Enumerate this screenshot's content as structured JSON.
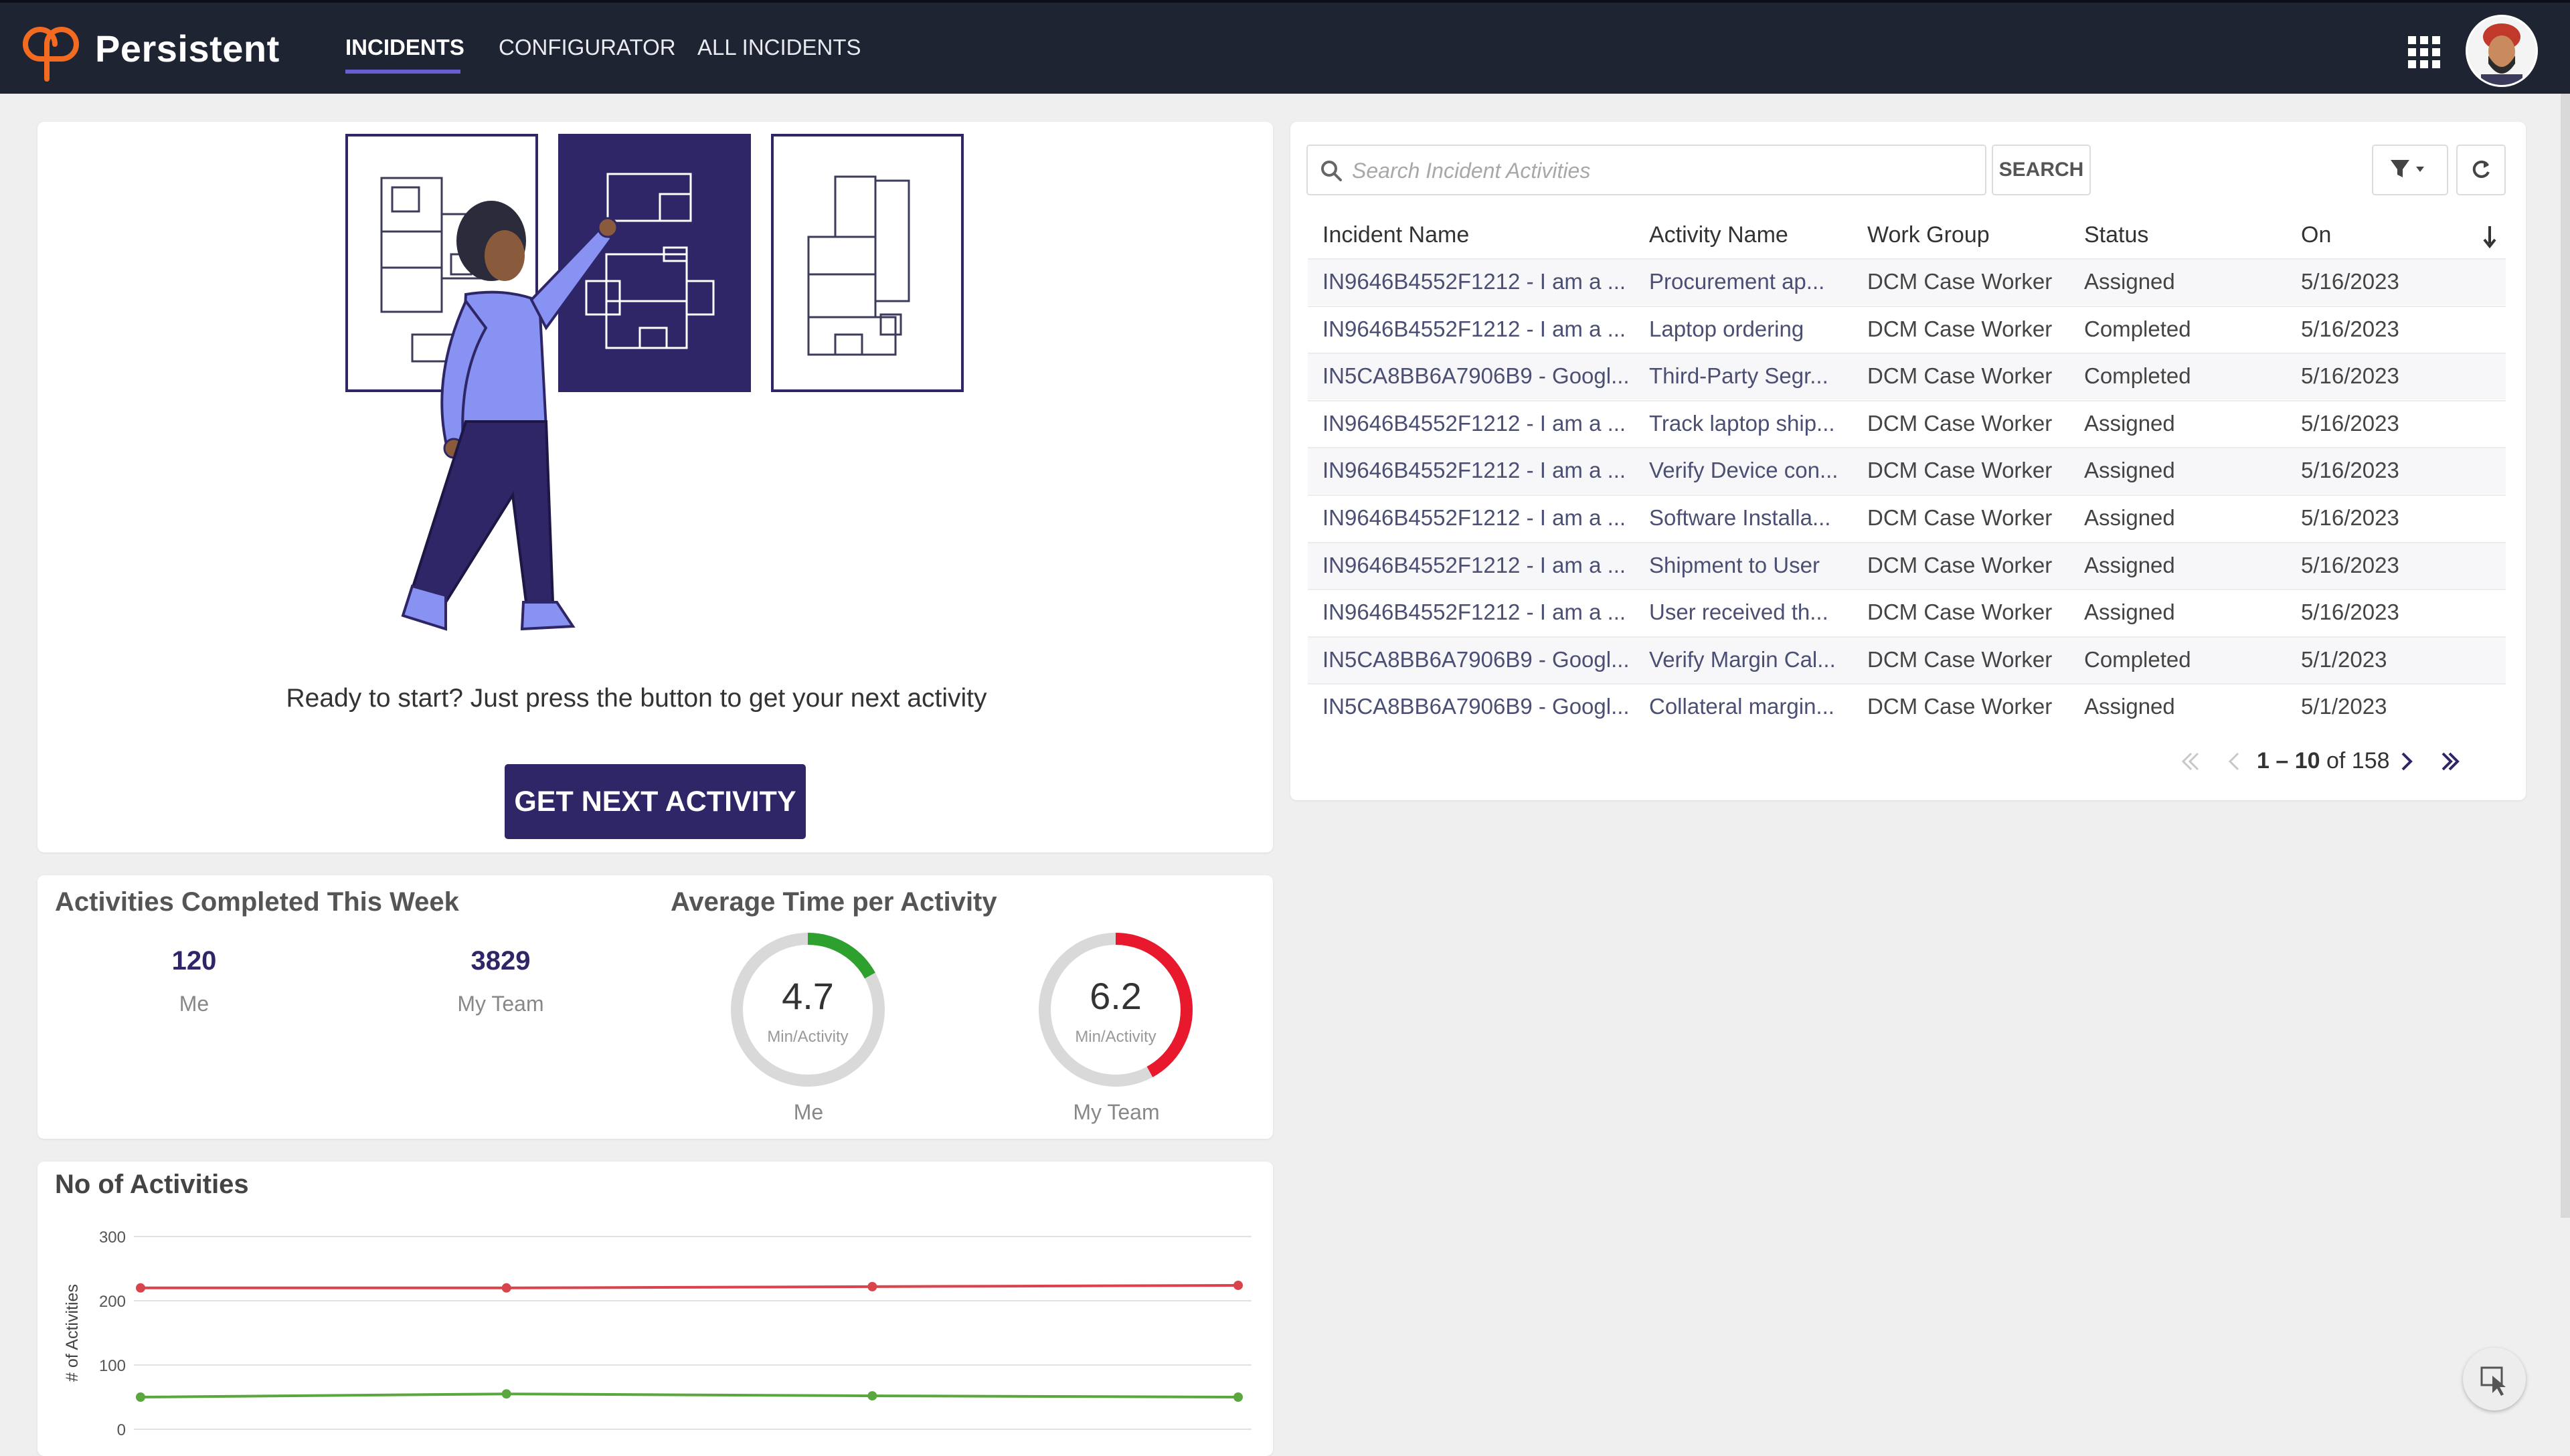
{
  "app": {
    "brand": "Persistent",
    "nav": [
      {
        "label": "INCIDENTS",
        "active": true
      },
      {
        "label": "CONFIGURATOR",
        "active": false
      },
      {
        "label": "ALL INCIDENTS",
        "active": false
      }
    ],
    "apps_icon": "grid-icon",
    "colors": {
      "nav_bg": "#1f2433",
      "accent": "#2e2667",
      "logo": "#f26b21"
    }
  },
  "hero": {
    "prompt": "Ready to start? Just press the button to get your next activity",
    "button_label": "GET NEXT ACTIVITY"
  },
  "stats": {
    "completed_title": "Activities Completed This Week",
    "me_value": "120",
    "me_label": "Me",
    "team_value": "3829",
    "team_label": "My Team",
    "avg_title": "Average Time per Activity",
    "gauges": [
      {
        "value": "4.7",
        "unit": "Min/Activity",
        "label": "Me",
        "fill": 0.17,
        "color": "#2ea02e"
      },
      {
        "value": "6.2",
        "unit": "Min/Activity",
        "label": "My Team",
        "fill": 0.42,
        "color": "#e8192c"
      }
    ]
  },
  "activities_chart": {
    "title": "No of Activities"
  },
  "chart_data": {
    "type": "line",
    "title": "No of Activities",
    "ylabel": "# of Activities",
    "xlabel": "",
    "ylim": [
      0,
      300
    ],
    "yticks": [
      "0",
      "100",
      "200",
      "300"
    ],
    "x": [
      1,
      2,
      3,
      4
    ],
    "series": [
      {
        "values": [
          220,
          220,
          222,
          224
        ],
        "color": "#d9434b"
      },
      {
        "values": [
          50,
          55,
          52,
          50
        ],
        "color": "#5aa83d"
      }
    ],
    "grid": true
  },
  "table": {
    "search_placeholder": "Search Incident Activities",
    "search_button": "SEARCH",
    "headers": [
      "Incident Name",
      "Activity Name",
      "Work Group",
      "Status",
      "On"
    ],
    "rows": [
      {
        "incident": "IN9646B4552F1212 - I am a ...",
        "activity": "Procurement ap...",
        "group": "DCM Case Worker",
        "status": "Assigned",
        "on": "5/16/2023"
      },
      {
        "incident": "IN9646B4552F1212 - I am a ...",
        "activity": "Laptop ordering",
        "group": "DCM Case Worker",
        "status": "Completed",
        "on": "5/16/2023"
      },
      {
        "incident": "IN5CA8BB6A7906B9 - Googl...",
        "activity": "Third-Party Segr...",
        "group": "DCM Case Worker",
        "status": "Completed",
        "on": "5/16/2023"
      },
      {
        "incident": "IN9646B4552F1212 - I am a ...",
        "activity": "Track laptop ship...",
        "group": "DCM Case Worker",
        "status": "Assigned",
        "on": "5/16/2023"
      },
      {
        "incident": "IN9646B4552F1212 - I am a ...",
        "activity": "Verify Device con...",
        "group": "DCM Case Worker",
        "status": "Assigned",
        "on": "5/16/2023"
      },
      {
        "incident": "IN9646B4552F1212 - I am a ...",
        "activity": "Software Installa...",
        "group": "DCM Case Worker",
        "status": "Assigned",
        "on": "5/16/2023"
      },
      {
        "incident": "IN9646B4552F1212 - I am a ...",
        "activity": "Shipment to User",
        "group": "DCM Case Worker",
        "status": "Assigned",
        "on": "5/16/2023"
      },
      {
        "incident": "IN9646B4552F1212 - I am a ...",
        "activity": "User received th...",
        "group": "DCM Case Worker",
        "status": "Assigned",
        "on": "5/16/2023"
      },
      {
        "incident": "IN5CA8BB6A7906B9 - Googl...",
        "activity": "Verify Margin Cal...",
        "group": "DCM Case Worker",
        "status": "Completed",
        "on": "5/1/2023"
      },
      {
        "incident": "IN5CA8BB6A7906B9 - Googl...",
        "activity": "Collateral margin...",
        "group": "DCM Case Worker",
        "status": "Assigned",
        "on": "5/1/2023"
      }
    ],
    "pager": {
      "range": "1 – 10",
      "of_text": " of 158"
    }
  }
}
